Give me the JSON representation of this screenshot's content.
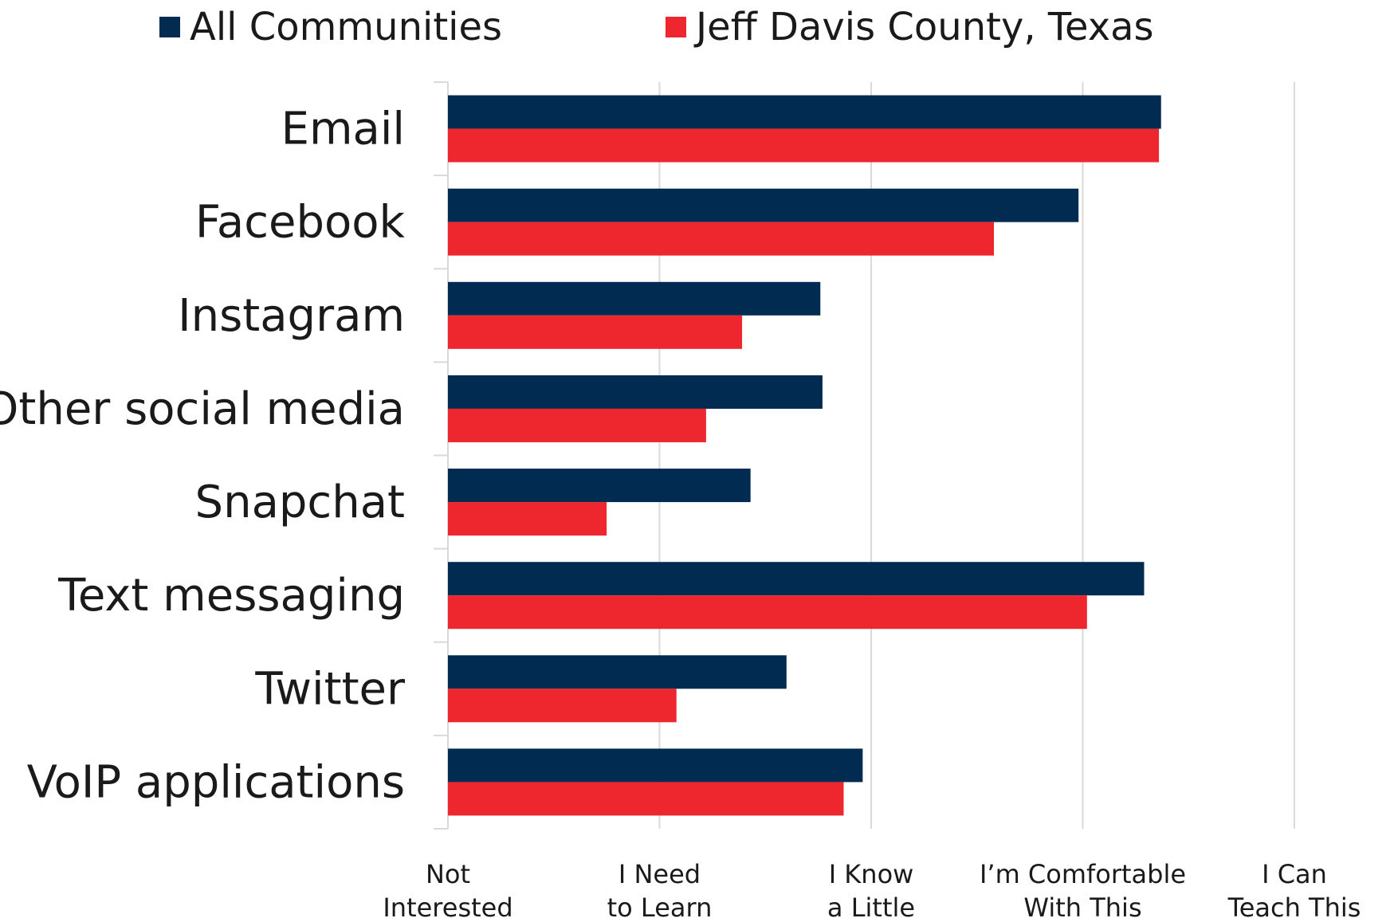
{
  "chart_data": {
    "type": "bar",
    "orientation": "horizontal",
    "title": "",
    "xlabel": "",
    "ylabel": "",
    "categories": [
      "Email",
      "Facebook",
      "Instagram",
      "Other social media",
      "Snapchat",
      "Text messaging",
      "Twitter",
      "VoIP applications"
    ],
    "series": [
      {
        "name": "All Communities",
        "color": "#022b51",
        "values": [
          3.37,
          2.98,
          1.76,
          1.77,
          1.43,
          3.29,
          1.6,
          1.96
        ]
      },
      {
        "name": "Jeff Davis County, Texas",
        "color": "#ee262d",
        "values": [
          3.36,
          2.58,
          1.39,
          1.22,
          0.75,
          3.02,
          1.08,
          1.87
        ]
      }
    ],
    "xlim": [
      0,
      4
    ],
    "xticks": [
      {
        "value": 0,
        "line1": "Not",
        "line2": "Interested"
      },
      {
        "value": 1,
        "line1": "I Need",
        "line2": "to Learn"
      },
      {
        "value": 2,
        "line1": "I Know",
        "line2": "a Little"
      },
      {
        "value": 3,
        "line1": "I’m Comfortable",
        "line2": "With This"
      },
      {
        "value": 4,
        "line1": "I Can",
        "line2": "Teach This"
      }
    ],
    "grid": true,
    "legend_position": "top"
  }
}
